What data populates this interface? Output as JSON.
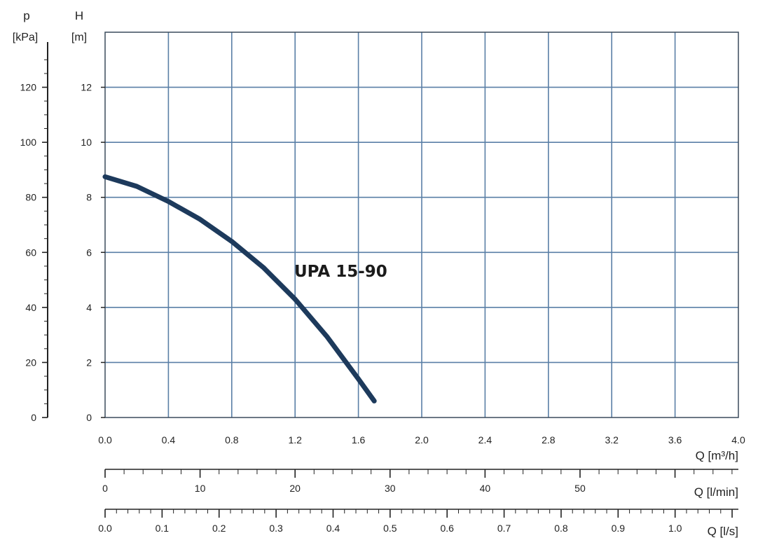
{
  "chart_data": {
    "type": "line",
    "title": "",
    "curve_label": "UPA 15-90",
    "series": [
      {
        "name": "UPA 15-90",
        "color": "#1d3a5c",
        "x": [
          0.0,
          0.2,
          0.4,
          0.6,
          0.8,
          1.0,
          1.2,
          1.4,
          1.6,
          1.7
        ],
        "y": [
          8.75,
          8.4,
          7.85,
          7.2,
          6.4,
          5.45,
          4.3,
          2.95,
          1.4,
          0.6
        ]
      }
    ],
    "grid": true,
    "grid_color": "#5a7fa6",
    "x_axis": {
      "label": "Q [m³/h]",
      "min": 0,
      "max": 4.0,
      "step": 0.4,
      "ticks": [
        "0.0",
        "0.4",
        "0.8",
        "1.2",
        "1.6",
        "2.0",
        "2.4",
        "2.8",
        "3.2",
        "3.6",
        "4.0"
      ]
    },
    "y_axis": {
      "label_top": "H",
      "label_unit": "[m]",
      "min": 0,
      "max": 14,
      "step": 2,
      "ticks": [
        "0",
        "2",
        "4",
        "6",
        "8",
        "10",
        "12"
      ]
    },
    "pressure_axis": {
      "label_top": "p",
      "label_unit": "[kPa]",
      "min": 0,
      "max": 140,
      "ticks": [
        "0",
        "20",
        "40",
        "60",
        "80",
        "100",
        "120"
      ]
    },
    "lmin_axis": {
      "label": "Q [l/min]",
      "min": 0,
      "max": 66.67,
      "ticks": [
        "0",
        "10",
        "20",
        "30",
        "40",
        "50"
      ]
    },
    "ls_axis": {
      "label": "Q [l/s]",
      "min": 0,
      "max": 1.111,
      "ticks": [
        "0.0",
        "0.1",
        "0.2",
        "0.3",
        "0.4",
        "0.5",
        "0.6",
        "0.7",
        "0.8",
        "0.9",
        "1.0"
      ]
    }
  }
}
